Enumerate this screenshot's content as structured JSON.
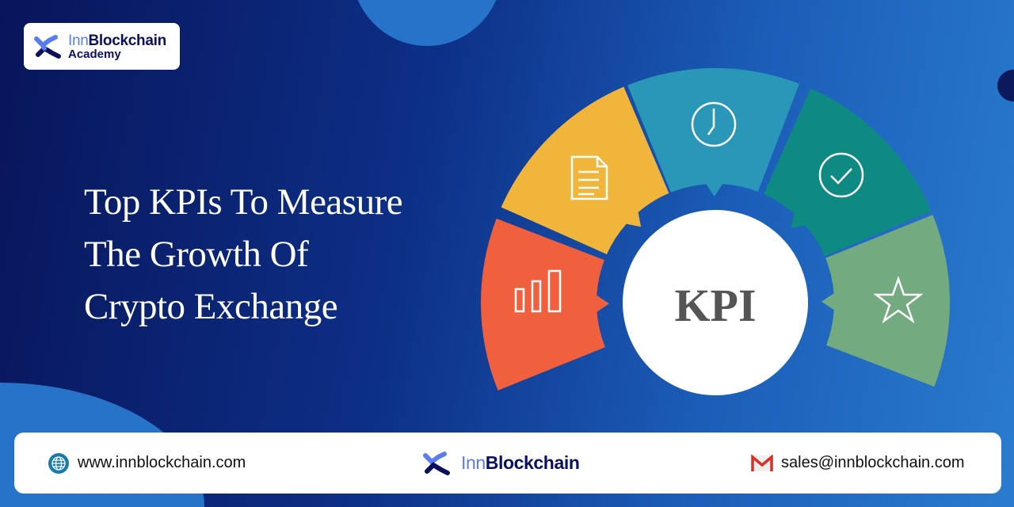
{
  "logo": {
    "brand_prefix": "Inn",
    "brand_suffix": "Blockchain",
    "subtitle": "Academy"
  },
  "headline": {
    "lines": [
      "Top KPIs To Measure",
      "The Growth Of",
      "Crypto Exchange"
    ]
  },
  "diagram": {
    "center_label": "KPI",
    "segments": [
      {
        "icon": "bar-chart-icon",
        "color": "#F0603F"
      },
      {
        "icon": "document-icon",
        "color": "#F2B53B"
      },
      {
        "icon": "clock-icon",
        "color": "#2A97B8"
      },
      {
        "icon": "check-circle-icon",
        "color": "#0E8A83"
      },
      {
        "icon": "star-icon",
        "color": "#74AA7F"
      }
    ]
  },
  "footer": {
    "website": "www.innblockchain.com",
    "brand_prefix": "Inn",
    "brand_suffix": "Blockchain",
    "email": "sales@innblockchain.com"
  },
  "colors": {
    "brand_dark": "#0B0F5E",
    "brand_light": "#5B7CF0",
    "background": "#0D2F86"
  }
}
